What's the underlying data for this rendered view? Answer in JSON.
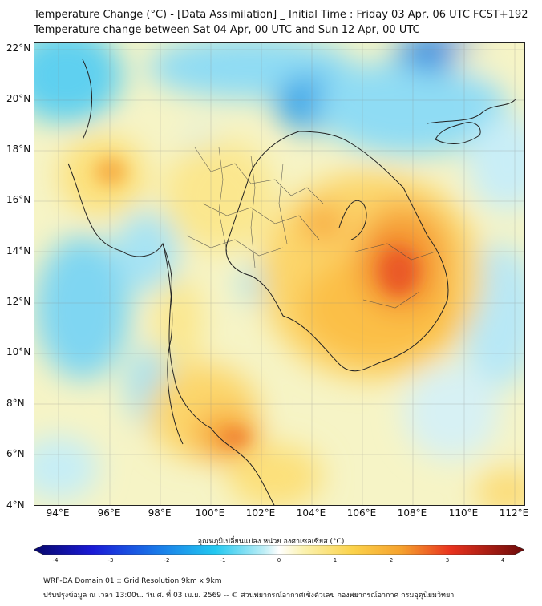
{
  "title_line1": "Temperature Change (°C) - [Data Assimilation] _ Initial Time : Friday 03 Apr, 06 UTC FCST+192",
  "title_line2": "Temperature change between Sat 04 Apr, 00 UTC and Sun 12 Apr, 00 UTC",
  "lat_labels": [
    "22°N",
    "20°N",
    "18°N",
    "16°N",
    "14°N",
    "12°N",
    "10°N",
    "8°N",
    "6°N",
    "4°N"
  ],
  "lon_labels": [
    "94°E",
    "96°E",
    "98°E",
    "100°E",
    "102°E",
    "104°E",
    "106°E",
    "108°E",
    "110°E",
    "112°E"
  ],
  "colorbar": {
    "title": "อุณหภูมิเปลี่ยนแปลง หน่วย องศาเซลเซียส (°C)",
    "ticks": [
      "-4",
      "-3",
      "-2",
      "-1",
      "0",
      "1",
      "2",
      "3",
      "4"
    ],
    "range": [
      -4,
      4
    ]
  },
  "footer_line1": "WRF-DA Domain 01 :: Grid Resolution 9km x 9km",
  "footer_line2": "ปรับปรุงข้อมูล ณ เวลา 13:00น. วัน ศ. ที่ 03 เม.ย. 2569 -- © ส่วนพยากรณ์อากาศเชิงตัวเลข กองพยากรณ์อากาศ กรมอุตุนิยมวิทยา"
}
